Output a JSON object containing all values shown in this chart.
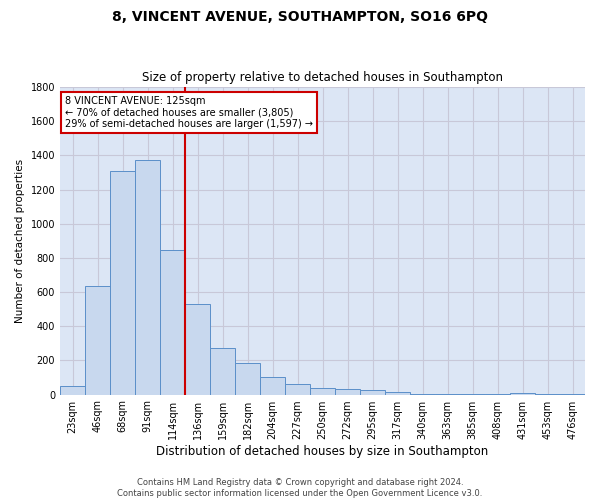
{
  "title": "8, VINCENT AVENUE, SOUTHAMPTON, SO16 6PQ",
  "subtitle": "Size of property relative to detached houses in Southampton",
  "xlabel": "Distribution of detached houses by size in Southampton",
  "ylabel": "Number of detached properties",
  "categories": [
    "23sqm",
    "46sqm",
    "68sqm",
    "91sqm",
    "114sqm",
    "136sqm",
    "159sqm",
    "182sqm",
    "204sqm",
    "227sqm",
    "250sqm",
    "272sqm",
    "295sqm",
    "317sqm",
    "340sqm",
    "363sqm",
    "385sqm",
    "408sqm",
    "431sqm",
    "453sqm",
    "476sqm"
  ],
  "values": [
    50,
    638,
    1307,
    1373,
    848,
    530,
    275,
    185,
    103,
    63,
    37,
    35,
    27,
    15,
    5,
    3,
    3,
    2,
    8,
    1,
    1
  ],
  "bar_color": "#c8d8ee",
  "bar_edge_color": "#5b8fc9",
  "annotation_line1": "8 VINCENT AVENUE: 125sqm",
  "annotation_line2": "← 70% of detached houses are smaller (3,805)",
  "annotation_line3": "29% of semi-detached houses are larger (1,597) →",
  "annotation_box_color": "#cc0000",
  "vline_color": "#cc0000",
  "vline_x_index": 4,
  "ylim": [
    0,
    1800
  ],
  "yticks": [
    0,
    200,
    400,
    600,
    800,
    1000,
    1200,
    1400,
    1600,
    1800
  ],
  "grid_color": "#c8c8d8",
  "background_color": "#dce6f5",
  "footer_line1": "Contains HM Land Registry data © Crown copyright and database right 2024.",
  "footer_line2": "Contains public sector information licensed under the Open Government Licence v3.0.",
  "title_fontsize": 10,
  "subtitle_fontsize": 8.5,
  "xlabel_fontsize": 8.5,
  "ylabel_fontsize": 7.5,
  "tick_fontsize": 7,
  "footer_fontsize": 6
}
